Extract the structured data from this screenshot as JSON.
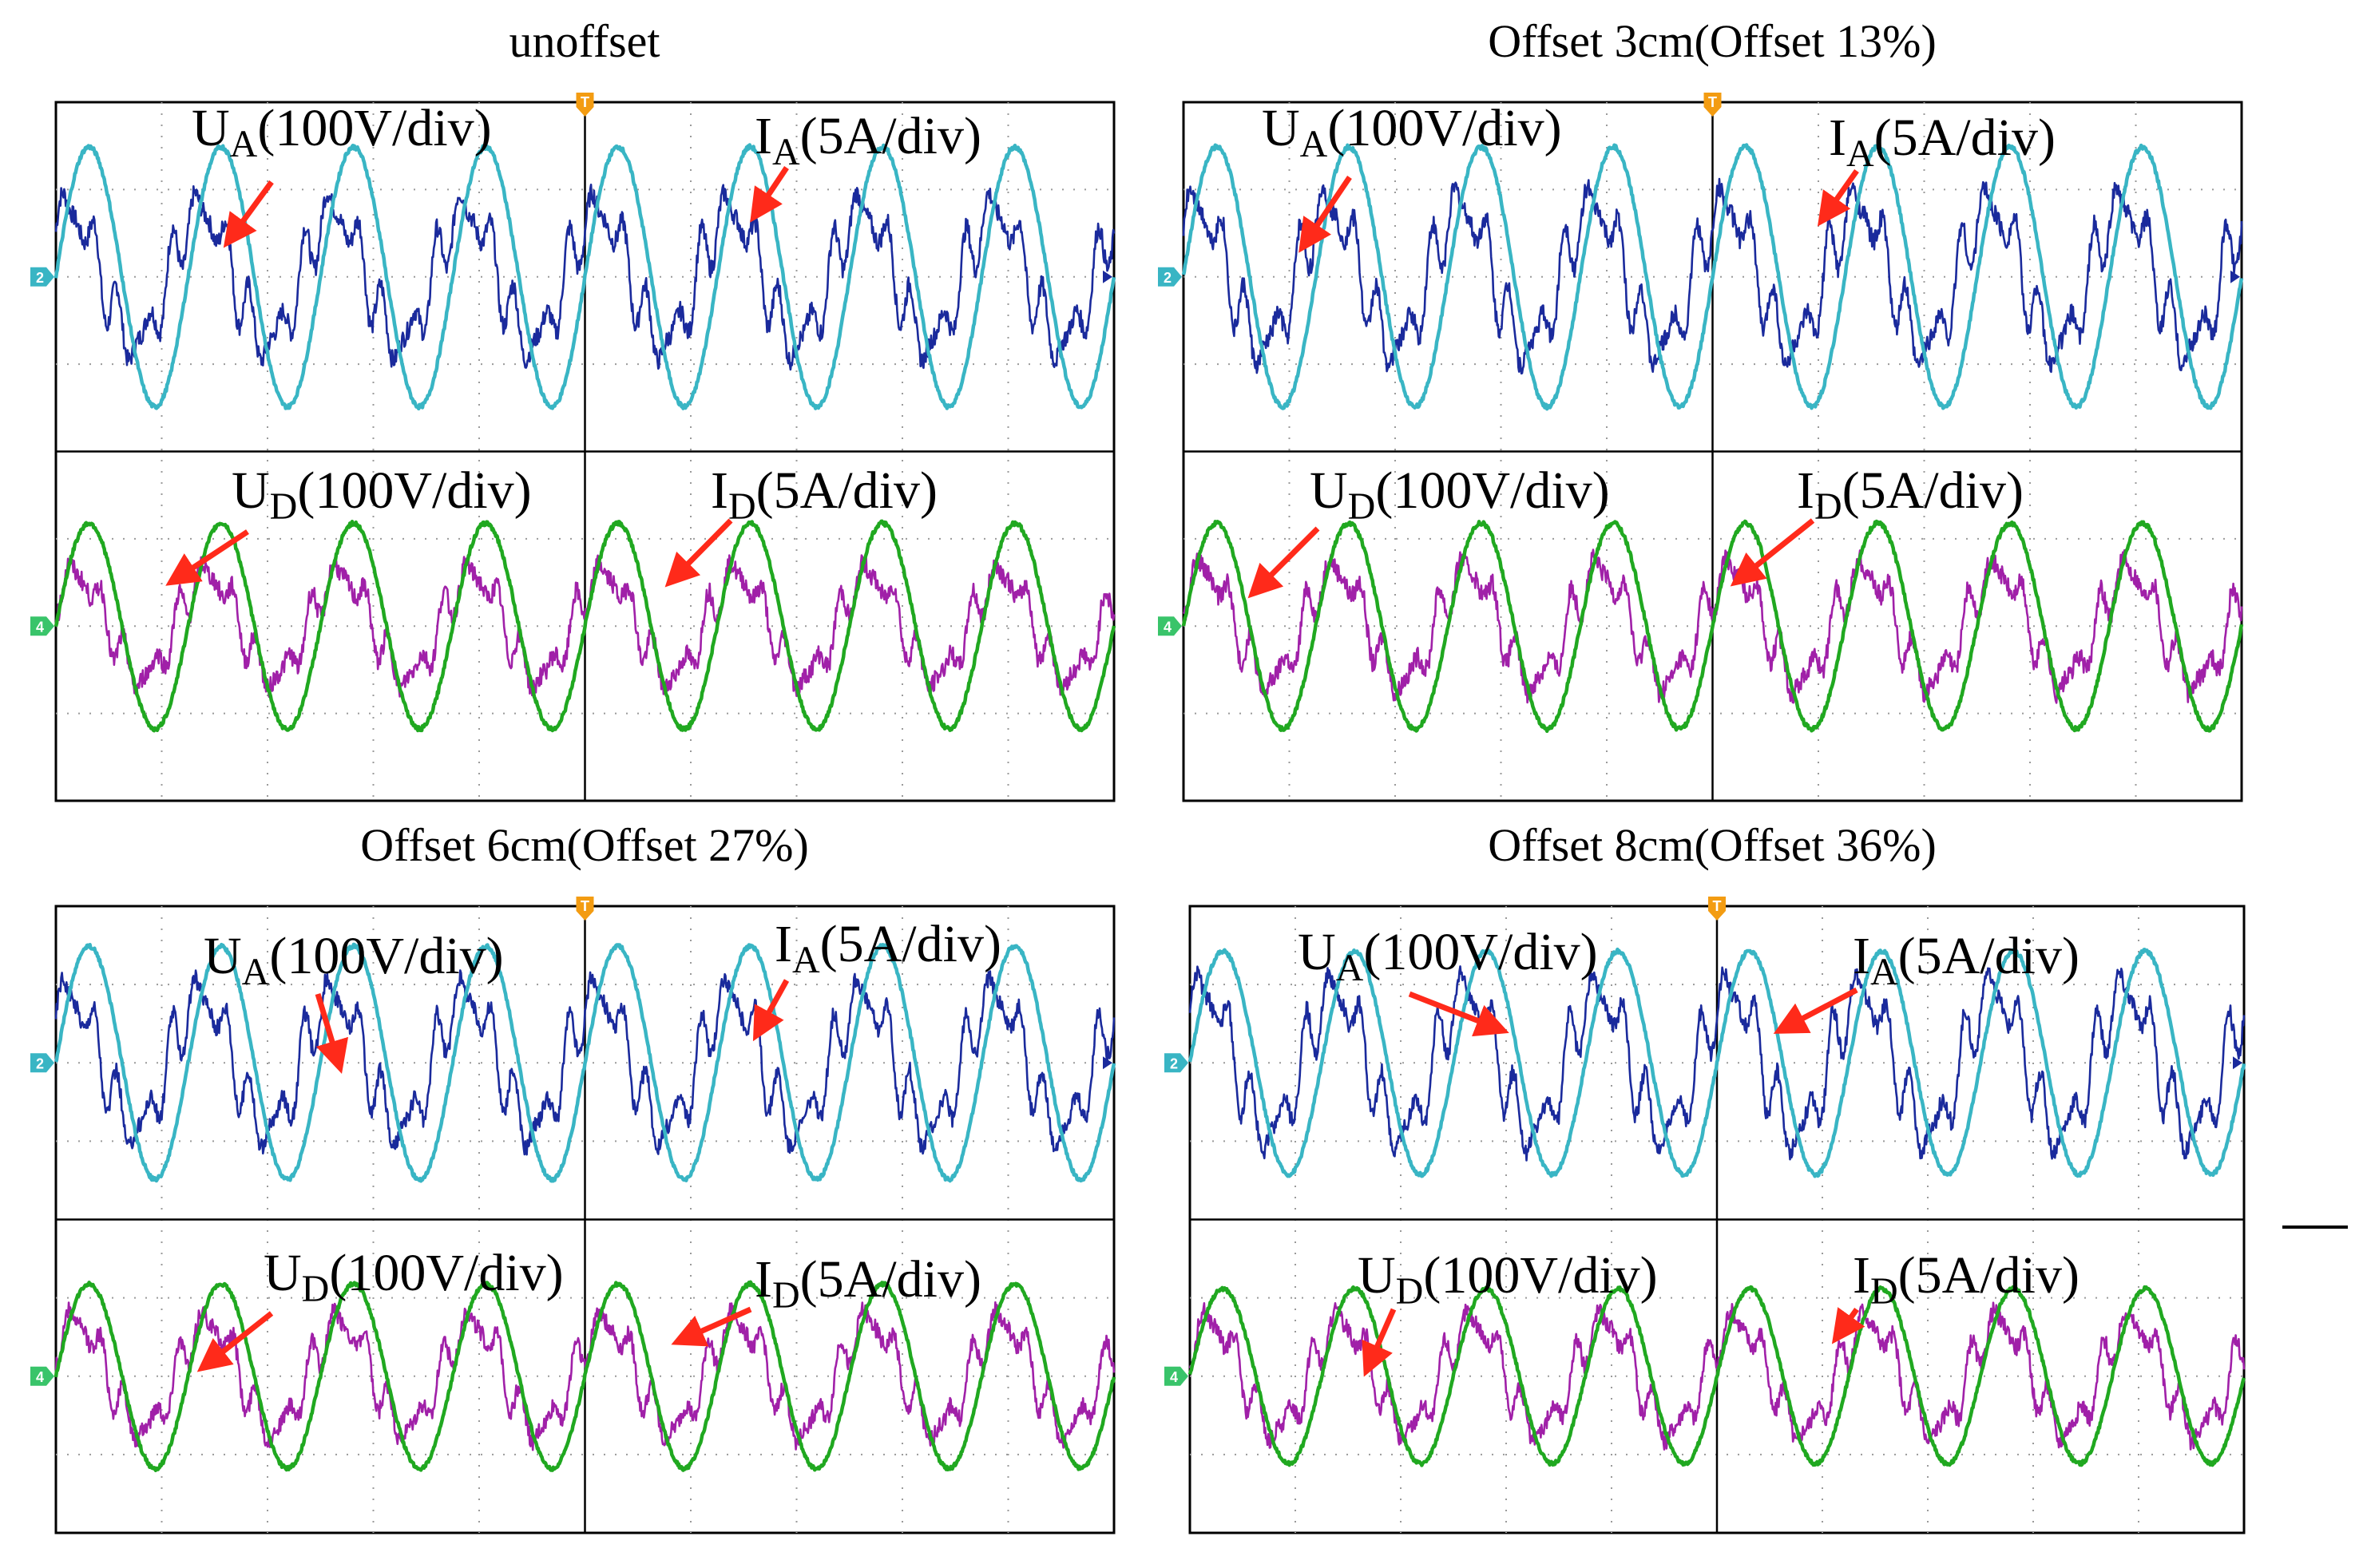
{
  "chart_data": [
    {
      "type": "line",
      "title": "unoffset",
      "trigger_marker": "T",
      "channel_markers": [
        "2",
        "4"
      ],
      "labels": {
        "ua": {
          "sym": "U",
          "sub": "A",
          "unit": "(100V/div)"
        },
        "ia": {
          "sym": "I",
          "sub": "A",
          "unit": "(5A/div)"
        },
        "ud": {
          "sym": "U",
          "sub": "D",
          "unit": "(100V/div)"
        },
        "id": {
          "sym": "I",
          "sub": "D",
          "unit": "(5A/div)"
        }
      },
      "series": [
        {
          "name": "UA",
          "channel": 1,
          "color": "#1a2a9c",
          "amplitude": 1.6,
          "cycles": 8,
          "phase": 0.15,
          "harmonic": 0.35
        },
        {
          "name": "IA",
          "channel": 2,
          "color": "#39b5c4",
          "amplitude": 2.4,
          "cycles": 8,
          "phase": 0.0,
          "harmonic": 0.0
        },
        {
          "name": "UD",
          "channel": 3,
          "color": "#a020a8",
          "amplitude": 1.2,
          "cycles": 8,
          "phase": 0.1,
          "harmonic": 0.3
        },
        {
          "name": "ID",
          "channel": 4,
          "color": "#20a820",
          "amplitude": 1.9,
          "cycles": 8,
          "phase": 0.0,
          "harmonic": 0.0
        }
      ]
    },
    {
      "type": "line",
      "title": "Offset  3cm(Offset 13%)",
      "trigger_marker": "T",
      "channel_markers": [
        "2",
        "4"
      ],
      "labels": {
        "ua": {
          "sym": "U",
          "sub": "A",
          "unit": "(100V/div)"
        },
        "ia": {
          "sym": "I",
          "sub": "A",
          "unit": "(5A/div)"
        },
        "ud": {
          "sym": "U",
          "sub": "D",
          "unit": "(100V/div)"
        },
        "id": {
          "sym": "I",
          "sub": "D",
          "unit": "(5A/div)"
        }
      },
      "series": [
        {
          "name": "UA",
          "channel": 1,
          "color": "#1a2a9c",
          "amplitude": 1.7,
          "cycles": 8,
          "phase": 0.15,
          "harmonic": 0.35
        },
        {
          "name": "IA",
          "channel": 2,
          "color": "#39b5c4",
          "amplitude": 2.4,
          "cycles": 8,
          "phase": 0.0,
          "harmonic": 0.0
        },
        {
          "name": "UD",
          "channel": 3,
          "color": "#a020a8",
          "amplitude": 1.3,
          "cycles": 8,
          "phase": 0.1,
          "harmonic": 0.3
        },
        {
          "name": "ID",
          "channel": 4,
          "color": "#20a820",
          "amplitude": 1.9,
          "cycles": 8,
          "phase": 0.0,
          "harmonic": 0.0
        }
      ]
    },
    {
      "type": "line",
      "title": "Offset  6cm(Offset 27%)",
      "trigger_marker": "T",
      "channel_markers": [
        "2",
        "4"
      ],
      "labels": {
        "ua": {
          "sym": "U",
          "sub": "A",
          "unit": "(100V/div)"
        },
        "ia": {
          "sym": "I",
          "sub": "A",
          "unit": "(5A/div)"
        },
        "ud": {
          "sym": "U",
          "sub": "D",
          "unit": "(100V/div)"
        },
        "id": {
          "sym": "I",
          "sub": "D",
          "unit": "(5A/div)"
        }
      },
      "series": [
        {
          "name": "UA",
          "channel": 1,
          "color": "#1a2a9c",
          "amplitude": 1.8,
          "cycles": 8,
          "phase": 0.15,
          "harmonic": 0.35
        },
        {
          "name": "IA",
          "channel": 2,
          "color": "#39b5c4",
          "amplitude": 2.4,
          "cycles": 8,
          "phase": 0.0,
          "harmonic": 0.0
        },
        {
          "name": "UD",
          "channel": 3,
          "color": "#a020a8",
          "amplitude": 1.4,
          "cycles": 8,
          "phase": 0.1,
          "harmonic": 0.3
        },
        {
          "name": "ID",
          "channel": 4,
          "color": "#20a820",
          "amplitude": 1.9,
          "cycles": 8,
          "phase": 0.0,
          "harmonic": 0.0
        }
      ]
    },
    {
      "type": "line",
      "title": "Offset  8cm(Offset 36%)",
      "trigger_marker": "T",
      "channel_markers": [
        "2",
        "4"
      ],
      "labels": {
        "ua": {
          "sym": "U",
          "sub": "A",
          "unit": "(100V/div)"
        },
        "ia": {
          "sym": "I",
          "sub": "A",
          "unit": "(5A/div)"
        },
        "ud": {
          "sym": "U",
          "sub": "D",
          "unit": "(100V/div)"
        },
        "id": {
          "sym": "I",
          "sub": "D",
          "unit": "(5A/div)"
        }
      },
      "series": [
        {
          "name": "UA",
          "channel": 1,
          "color": "#1a2a9c",
          "amplitude": 1.9,
          "cycles": 8,
          "phase": 0.15,
          "harmonic": 0.35
        },
        {
          "name": "IA",
          "channel": 2,
          "color": "#39b5c4",
          "amplitude": 2.3,
          "cycles": 8,
          "phase": 0.0,
          "harmonic": 0.0
        },
        {
          "name": "UD",
          "channel": 3,
          "color": "#a020a8",
          "amplitude": 1.4,
          "cycles": 8,
          "phase": 0.1,
          "harmonic": 0.3
        },
        {
          "name": "ID",
          "channel": 4,
          "color": "#20a820",
          "amplitude": 1.8,
          "cycles": 8,
          "phase": 0.0,
          "harmonic": 0.0
        }
      ]
    }
  ]
}
